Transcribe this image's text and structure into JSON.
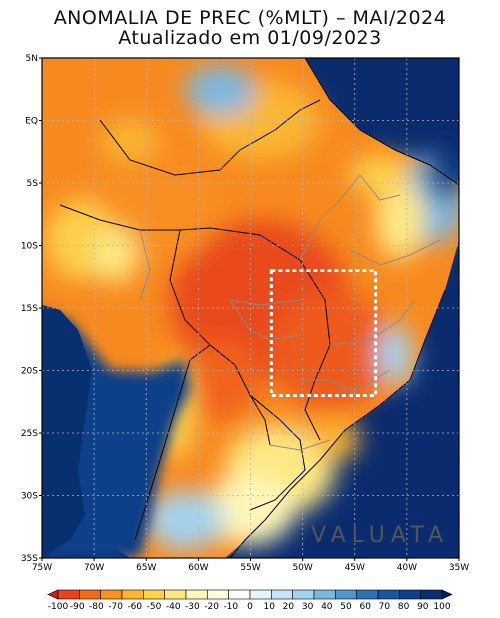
{
  "title": "ANOMALIA DE PREC (%MLT) – MAI/2024",
  "subtitle": "Atualizado em 01/09/2023",
  "lat_labels": [
    "5N",
    "EQ",
    "5S",
    "10S",
    "15S",
    "20S",
    "25S",
    "30S",
    "35S"
  ],
  "lon_labels": [
    "75W",
    "70W",
    "65W",
    "60W",
    "55W",
    "50W",
    "45W",
    "40W",
    "35W"
  ],
  "extent": {
    "lon_min": -75,
    "lon_max": -35,
    "lat_min": -35,
    "lat_max": 5
  },
  "highlight_box": {
    "lon_min": -53,
    "lon_max": -43,
    "lat_min": -22,
    "lat_max": -12
  },
  "watermark": "VALUATA",
  "colorbar": {
    "labels": [
      "-100",
      "-90",
      "-80",
      "-70",
      "-60",
      "-50",
      "-40",
      "-30",
      "-20",
      "-10",
      "0",
      "10",
      "20",
      "30",
      "40",
      "50",
      "60",
      "70",
      "80",
      "90",
      "100"
    ],
    "colors": [
      "#d7191c",
      "#e8431a",
      "#f26a1b",
      "#f8921f",
      "#fbb631",
      "#fdd24d",
      "#fee883",
      "#fff6b8",
      "#fffbe0",
      "#ffffff",
      "#e8f4fb",
      "#c6e4f4",
      "#a3d2ec",
      "#7ab8e0",
      "#4f96cd",
      "#2e72b6",
      "#1a55a0",
      "#0e3f88",
      "#06306f",
      "#021f55"
    ]
  },
  "colors": {
    "land_base": "#f78a1f",
    "ocean": "#0a2b6e",
    "border": "#000000",
    "state": "#8a8a8a",
    "box": "#ffffff"
  }
}
